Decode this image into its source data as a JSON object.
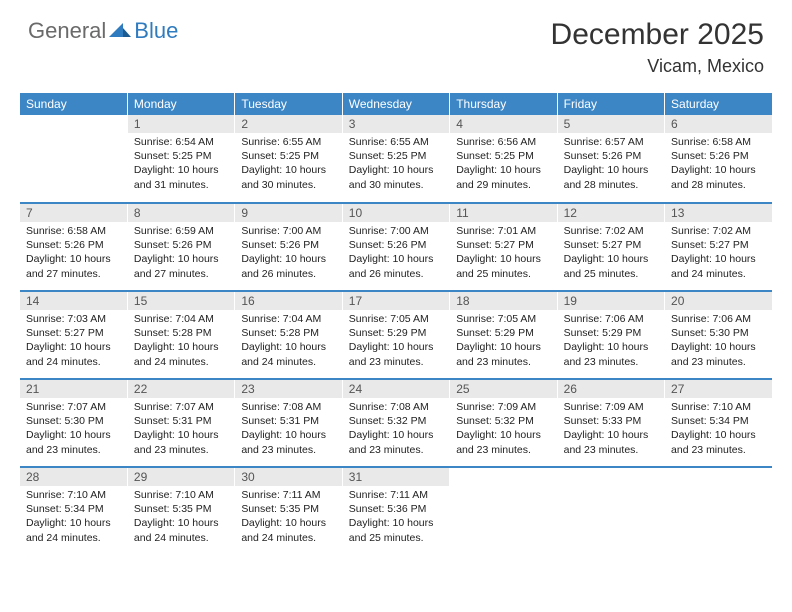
{
  "brand": {
    "part1": "General",
    "part2": "Blue"
  },
  "title": "December 2025",
  "location": "Vicam, Mexico",
  "colors": {
    "header_bg": "#3d86c6",
    "daynum_bg": "#e9e9e9",
    "row_border": "#3d86c6",
    "logo_gray": "#6a6a6a",
    "logo_blue": "#2f7bbf"
  },
  "weekdays": [
    "Sunday",
    "Monday",
    "Tuesday",
    "Wednesday",
    "Thursday",
    "Friday",
    "Saturday"
  ],
  "weeks": [
    [
      {
        "n": "",
        "lines": []
      },
      {
        "n": "1",
        "lines": [
          "Sunrise: 6:54 AM",
          "Sunset: 5:25 PM",
          "Daylight: 10 hours and 31 minutes."
        ]
      },
      {
        "n": "2",
        "lines": [
          "Sunrise: 6:55 AM",
          "Sunset: 5:25 PM",
          "Daylight: 10 hours and 30 minutes."
        ]
      },
      {
        "n": "3",
        "lines": [
          "Sunrise: 6:55 AM",
          "Sunset: 5:25 PM",
          "Daylight: 10 hours and 30 minutes."
        ]
      },
      {
        "n": "4",
        "lines": [
          "Sunrise: 6:56 AM",
          "Sunset: 5:25 PM",
          "Daylight: 10 hours and 29 minutes."
        ]
      },
      {
        "n": "5",
        "lines": [
          "Sunrise: 6:57 AM",
          "Sunset: 5:26 PM",
          "Daylight: 10 hours and 28 minutes."
        ]
      },
      {
        "n": "6",
        "lines": [
          "Sunrise: 6:58 AM",
          "Sunset: 5:26 PM",
          "Daylight: 10 hours and 28 minutes."
        ]
      }
    ],
    [
      {
        "n": "7",
        "lines": [
          "Sunrise: 6:58 AM",
          "Sunset: 5:26 PM",
          "Daylight: 10 hours and 27 minutes."
        ]
      },
      {
        "n": "8",
        "lines": [
          "Sunrise: 6:59 AM",
          "Sunset: 5:26 PM",
          "Daylight: 10 hours and 27 minutes."
        ]
      },
      {
        "n": "9",
        "lines": [
          "Sunrise: 7:00 AM",
          "Sunset: 5:26 PM",
          "Daylight: 10 hours and 26 minutes."
        ]
      },
      {
        "n": "10",
        "lines": [
          "Sunrise: 7:00 AM",
          "Sunset: 5:26 PM",
          "Daylight: 10 hours and 26 minutes."
        ]
      },
      {
        "n": "11",
        "lines": [
          "Sunrise: 7:01 AM",
          "Sunset: 5:27 PM",
          "Daylight: 10 hours and 25 minutes."
        ]
      },
      {
        "n": "12",
        "lines": [
          "Sunrise: 7:02 AM",
          "Sunset: 5:27 PM",
          "Daylight: 10 hours and 25 minutes."
        ]
      },
      {
        "n": "13",
        "lines": [
          "Sunrise: 7:02 AM",
          "Sunset: 5:27 PM",
          "Daylight: 10 hours and 24 minutes."
        ]
      }
    ],
    [
      {
        "n": "14",
        "lines": [
          "Sunrise: 7:03 AM",
          "Sunset: 5:27 PM",
          "Daylight: 10 hours and 24 minutes."
        ]
      },
      {
        "n": "15",
        "lines": [
          "Sunrise: 7:04 AM",
          "Sunset: 5:28 PM",
          "Daylight: 10 hours and 24 minutes."
        ]
      },
      {
        "n": "16",
        "lines": [
          "Sunrise: 7:04 AM",
          "Sunset: 5:28 PM",
          "Daylight: 10 hours and 24 minutes."
        ]
      },
      {
        "n": "17",
        "lines": [
          "Sunrise: 7:05 AM",
          "Sunset: 5:29 PM",
          "Daylight: 10 hours and 23 minutes."
        ]
      },
      {
        "n": "18",
        "lines": [
          "Sunrise: 7:05 AM",
          "Sunset: 5:29 PM",
          "Daylight: 10 hours and 23 minutes."
        ]
      },
      {
        "n": "19",
        "lines": [
          "Sunrise: 7:06 AM",
          "Sunset: 5:29 PM",
          "Daylight: 10 hours and 23 minutes."
        ]
      },
      {
        "n": "20",
        "lines": [
          "Sunrise: 7:06 AM",
          "Sunset: 5:30 PM",
          "Daylight: 10 hours and 23 minutes."
        ]
      }
    ],
    [
      {
        "n": "21",
        "lines": [
          "Sunrise: 7:07 AM",
          "Sunset: 5:30 PM",
          "Daylight: 10 hours and 23 minutes."
        ]
      },
      {
        "n": "22",
        "lines": [
          "Sunrise: 7:07 AM",
          "Sunset: 5:31 PM",
          "Daylight: 10 hours and 23 minutes."
        ]
      },
      {
        "n": "23",
        "lines": [
          "Sunrise: 7:08 AM",
          "Sunset: 5:31 PM",
          "Daylight: 10 hours and 23 minutes."
        ]
      },
      {
        "n": "24",
        "lines": [
          "Sunrise: 7:08 AM",
          "Sunset: 5:32 PM",
          "Daylight: 10 hours and 23 minutes."
        ]
      },
      {
        "n": "25",
        "lines": [
          "Sunrise: 7:09 AM",
          "Sunset: 5:32 PM",
          "Daylight: 10 hours and 23 minutes."
        ]
      },
      {
        "n": "26",
        "lines": [
          "Sunrise: 7:09 AM",
          "Sunset: 5:33 PM",
          "Daylight: 10 hours and 23 minutes."
        ]
      },
      {
        "n": "27",
        "lines": [
          "Sunrise: 7:10 AM",
          "Sunset: 5:34 PM",
          "Daylight: 10 hours and 23 minutes."
        ]
      }
    ],
    [
      {
        "n": "28",
        "lines": [
          "Sunrise: 7:10 AM",
          "Sunset: 5:34 PM",
          "Daylight: 10 hours and 24 minutes."
        ]
      },
      {
        "n": "29",
        "lines": [
          "Sunrise: 7:10 AM",
          "Sunset: 5:35 PM",
          "Daylight: 10 hours and 24 minutes."
        ]
      },
      {
        "n": "30",
        "lines": [
          "Sunrise: 7:11 AM",
          "Sunset: 5:35 PM",
          "Daylight: 10 hours and 24 minutes."
        ]
      },
      {
        "n": "31",
        "lines": [
          "Sunrise: 7:11 AM",
          "Sunset: 5:36 PM",
          "Daylight: 10 hours and 25 minutes."
        ]
      },
      {
        "n": "",
        "lines": []
      },
      {
        "n": "",
        "lines": []
      },
      {
        "n": "",
        "lines": []
      }
    ]
  ]
}
